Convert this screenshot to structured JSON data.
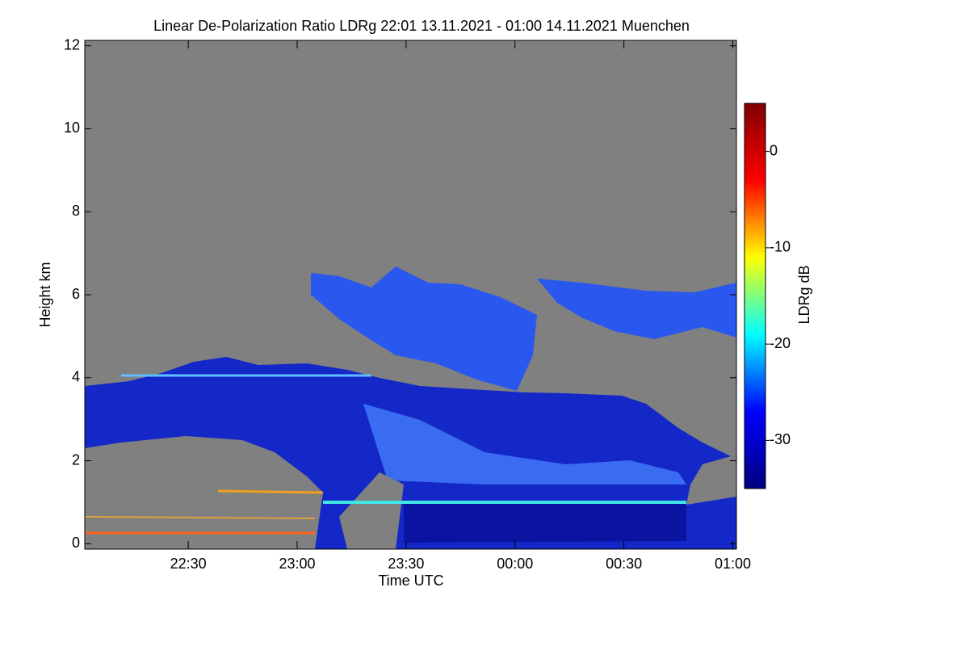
{
  "chart_data": {
    "type": "heatmap",
    "title": "Linear De-Polarization Ratio LDRg   22:01 13.11.2021 - 01:00 14.11.2021 Muenchen",
    "xlabel": "Time UTC",
    "ylabel": "Height km",
    "xlim": [
      1.5,
      181
    ],
    "xticks": [
      {
        "value": 30,
        "label": "22:30"
      },
      {
        "value": 60,
        "label": "23:00"
      },
      {
        "value": 90,
        "label": "23:30"
      },
      {
        "value": 120,
        "label": "00:00"
      },
      {
        "value": 150,
        "label": "00:30"
      },
      {
        "value": 180,
        "label": "01:00"
      }
    ],
    "ylim": [
      -0.13,
      12.13
    ],
    "yticks": [
      0,
      2,
      4,
      6,
      8,
      10,
      12
    ],
    "colorbar": {
      "label": "LDRg dB",
      "lim": [
        -35,
        5
      ],
      "ticks": [
        0,
        -10,
        -20,
        -30
      ],
      "colormap": [
        "#000080",
        "#0000ff",
        "#00ffff",
        "#ffff00",
        "#ff0000",
        "#800000"
      ]
    }
  }
}
